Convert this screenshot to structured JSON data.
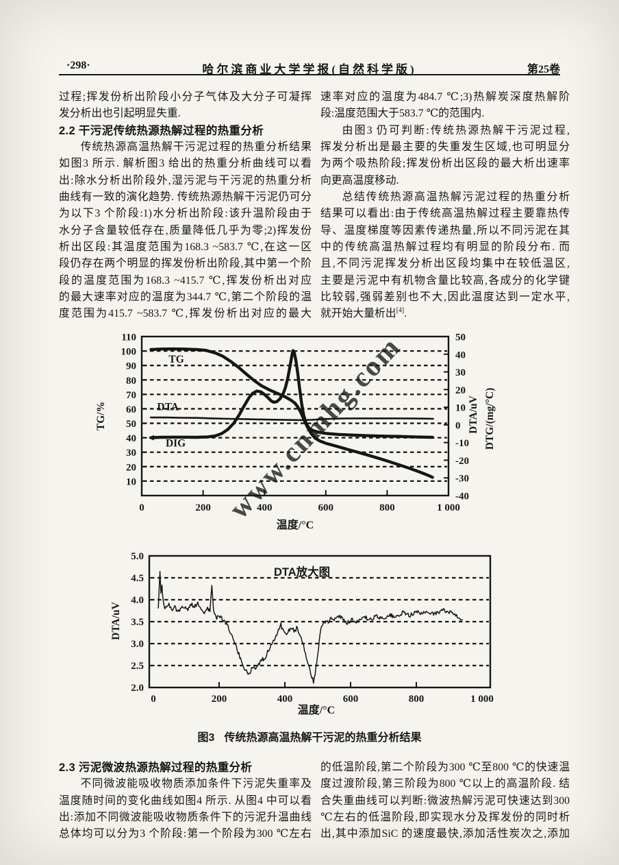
{
  "header": {
    "page_number": "·298·",
    "journal_title": "哈尔滨商业大学学报(自然科学版)",
    "volume": "第25卷"
  },
  "top_left_lines": [
    {
      "t": "过程;挥发份析出阶段小分子气体及大分子可凝挥"
    },
    {
      "t": "发分析出也引起明显失重.",
      "j": false
    },
    {
      "t": "2.2  干污泥传统热源热解过程的热重分析",
      "h": true
    },
    {
      "t": "传统热源高温热解干污泥过程的热重分析结果",
      "indent": true
    },
    {
      "t": "如图3 所示. 解析图3 给出的热重分析曲线可以看"
    },
    {
      "t": "出:除水分析出阶段外,湿污泥与干污泥的热重分析"
    },
    {
      "t": "曲线有一致的演化趋势. 传统热源热解干污泥仍可分"
    },
    {
      "t": "为以下3 个阶段:1)水分析出阶段:该升温阶段由于"
    },
    {
      "t": "水分子含量较低存在,质量降低几乎为零;2)挥发份"
    },
    {
      "t": "析出区段:其温度范围为168.3 ~583.7 ℃,在这一区"
    },
    {
      "t": "段仍存在两个明显的挥发份析出阶段,其中第一个阶"
    },
    {
      "t": "段的温度范围为168.3 ~415.7 ℃,挥发份析出对应"
    },
    {
      "t": "的最大速率对应的温度为344.7 ℃,第二个阶段的温"
    },
    {
      "t": "度范围为415.7 ~583.7 ℃,挥发份析出对应的最大"
    }
  ],
  "top_right_lines": [
    {
      "t": "速率对应的温度为484.7 ℃;3)热解炭深度热解阶"
    },
    {
      "t": "段:温度范围大于583.7 ℃的范围内.",
      "j": false
    },
    {
      "t": "由图3 仍可判断:传统热源热解干污泥过程,",
      "indent": true
    },
    {
      "t": "挥发分析出是最主要的失重发生区域,也可明显分"
    },
    {
      "t": "为两个吸热阶段;挥发份析出区段的最大析出速率"
    },
    {
      "t": "向更高温度移动.",
      "j": false
    },
    {
      "t": "总结传统热源高温热解污泥过程的热重分析",
      "indent": true
    },
    {
      "t": "结果可以看出:由于传统高温热解过程主要靠热传"
    },
    {
      "t": "导、温度梯度等因素传递热量,所以不同污泥在其"
    },
    {
      "t": "中的传统高温热解过程均有明显的阶段分布. 而"
    },
    {
      "t": "且,不同污泥挥发分析出区段均集中在较低温区,"
    },
    {
      "t": "主要是污泥中有机物含量比较高,各成分的化学键"
    },
    {
      "t": "比较弱,强弱差别也不大,因此温度达到一定水平,"
    },
    {
      "t": "就开始大量析出",
      "sup": "[4]",
      "tail": ".",
      "j": false
    }
  ],
  "figure_caption": {
    "num": "图3",
    "text": "传统热源高温热解干污泥的热重分析结果"
  },
  "bottom_left_lines": [
    {
      "t": "2.3  污泥微波热源热解过程的热重分析",
      "h": true
    },
    {
      "t": "不同微波能吸收物质添加条件下污泥失重率及",
      "indent": true
    },
    {
      "t": "温度随时间的变化曲线如图4 所示. 从图4 中可以看"
    },
    {
      "t": "出:添加不同微波能吸收物质条件下的污泥升温曲线"
    },
    {
      "t": "总体均可以分为3 个阶段:第一个阶段为300 ℃左右"
    }
  ],
  "bottom_right_lines": [
    {
      "t": "的低温阶段,第二个阶段为300 ℃至800 ℃的快速温"
    },
    {
      "t": "度过渡阶段,第三阶段为800 ℃以上的高温阶段. 结"
    },
    {
      "t": "合失重曲线可以判断:微波热解污泥可快速达到300"
    },
    {
      "t": "℃左右的低温阶段,即实现水分及挥发份的同时析"
    },
    {
      "t": "出,其中添加SiC 的速度最快,添加活性炭次之,添加"
    }
  ],
  "watermark": {
    "text": "www.cnmhg.com",
    "color": "#e0506e"
  },
  "colors": {
    "ink": "#181818",
    "paper": "#f6f4ee"
  },
  "chart_data": [
    {
      "type": "line",
      "xlabel": "温度/°C",
      "x_ticks": [
        0,
        200,
        400,
        600,
        800,
        1000
      ],
      "x_tick_labels": [
        "0",
        "200",
        "400",
        "600",
        "800",
        "1 000"
      ],
      "left_axis": {
        "title": "TG/%",
        "tick_values": [
          110,
          100,
          90,
          80,
          70,
          60,
          50,
          40,
          30,
          20,
          10
        ],
        "ticks": [
          "110",
          "100",
          "90",
          "80",
          "70",
          "60",
          "50",
          "40",
          "30",
          "20",
          "10"
        ],
        "range": [
          0,
          110
        ]
      },
      "right_axis": {
        "titles": [
          "DTA/uV",
          "DTG/(mg/°C)"
        ],
        "tick_values": [
          50,
          40,
          30,
          20,
          10,
          0,
          -10,
          -20,
          -30,
          -40
        ],
        "ticks": [
          "50",
          "40",
          "30",
          "20",
          "10",
          "0",
          "-10",
          "-20",
          "-30",
          "-40"
        ],
        "range": [
          -40,
          50
        ]
      },
      "grid": "horizontal-dashed",
      "legend_position": "inline-labels",
      "series": [
        {
          "name": "TG",
          "label_at": [
            88,
            92
          ],
          "points": [
            [
              30,
              101
            ],
            [
              60,
              101.3
            ],
            [
              100,
              101.4
            ],
            [
              140,
              101.3
            ],
            [
              180,
              101
            ],
            [
              210,
              100.4
            ],
            [
              240,
              98.6
            ],
            [
              265,
              96.3
            ],
            [
              290,
              92.8
            ],
            [
              315,
              88.8
            ],
            [
              340,
              84.2
            ],
            [
              365,
              79.8
            ],
            [
              390,
              76.0
            ],
            [
              415,
              73.2
            ],
            [
              440,
              70.9
            ],
            [
              465,
              68.6
            ],
            [
              485,
              66.2
            ],
            [
              500,
              63.8
            ],
            [
              510,
              60.9
            ],
            [
              520,
              56.8
            ],
            [
              530,
              52.0
            ],
            [
              540,
              47.5
            ],
            [
              552,
              43.0
            ],
            [
              565,
              39.8
            ],
            [
              580,
              37.8
            ],
            [
              600,
              36.2
            ],
            [
              630,
              34.4
            ],
            [
              665,
              32.3
            ],
            [
              700,
              30.2
            ],
            [
              735,
              28.1
            ],
            [
              770,
              25.9
            ],
            [
              805,
              23.6
            ],
            [
              840,
              21.2
            ],
            [
              875,
              18.7
            ],
            [
              905,
              16.4
            ],
            [
              930,
              14.3
            ],
            [
              948,
              12.6
            ]
          ]
        },
        {
          "name": "DTA",
          "label_at": [
            50,
            59
          ],
          "points": [
            [
              30,
              54.0
            ],
            [
              80,
              54.0
            ],
            [
              130,
              53.8
            ],
            [
              180,
              53.7
            ],
            [
              230,
              53.4
            ],
            [
              280,
              53.1
            ],
            [
              330,
              52.9
            ],
            [
              380,
              52.7
            ],
            [
              430,
              52.5
            ],
            [
              480,
              52.3
            ],
            [
              520,
              52.2
            ],
            [
              555,
              52.4
            ],
            [
              590,
              52.9
            ],
            [
              630,
              53.2
            ],
            [
              680,
              53.4
            ],
            [
              730,
              53.4
            ],
            [
              780,
              53.4
            ],
            [
              830,
              53.4
            ],
            [
              880,
              53.3
            ],
            [
              930,
              53.2
            ],
            [
              950,
              53.1
            ]
          ]
        },
        {
          "name": "DIG",
          "label_at": [
            78,
            34
          ],
          "points": [
            [
              30,
              40.0
            ],
            [
              60,
              40.3
            ],
            [
              100,
              40.4
            ],
            [
              140,
              40.4
            ],
            [
              180,
              40.3
            ],
            [
              215,
              40.6
            ],
            [
              240,
              41.3
            ],
            [
              260,
              42.8
            ],
            [
              280,
              45.6
            ],
            [
              300,
              50.0
            ],
            [
              318,
              56.0
            ],
            [
              335,
              62.5
            ],
            [
              350,
              67.8
            ],
            [
              362,
              70.8
            ],
            [
              375,
              72.3
            ],
            [
              388,
              71.8
            ],
            [
              400,
              70.0
            ],
            [
              412,
              67.6
            ],
            [
              422,
              65.5
            ],
            [
              430,
              64.6
            ],
            [
              440,
              64.9
            ],
            [
              450,
              66.8
            ],
            [
              460,
              70.0
            ],
            [
              468,
              74.5
            ],
            [
              476,
              81.0
            ],
            [
              483,
              89.0
            ],
            [
              489,
              96.5
            ],
            [
              493,
              100.3
            ],
            [
              497,
              99.0
            ],
            [
              503,
              93.0
            ],
            [
              509,
              84.0
            ],
            [
              515,
              73.5
            ],
            [
              521,
              64.0
            ],
            [
              528,
              55.5
            ],
            [
              536,
              49.8
            ],
            [
              546,
              46.6
            ],
            [
              558,
              45.0
            ],
            [
              575,
              43.9
            ],
            [
              600,
              43.0
            ],
            [
              640,
              42.3
            ],
            [
              690,
              41.8
            ],
            [
              740,
              41.4
            ],
            [
              790,
              41.1
            ],
            [
              840,
              40.9
            ],
            [
              890,
              40.6
            ],
            [
              948,
              40.3
            ]
          ]
        }
      ]
    },
    {
      "type": "line",
      "title": "DTA放大图",
      "xlabel": "温度/°C",
      "ylabel": "DTA/uV",
      "ylim": [
        2.0,
        5.0
      ],
      "y_tick_values": [
        5.0,
        4.5,
        4.0,
        3.5,
        3.0,
        2.5,
        2.0
      ],
      "y_tick_labels": [
        "5.0",
        "4.5",
        "4.0",
        "3.5",
        "3.0",
        "2.5",
        "2.0"
      ],
      "x_ticks": [
        0,
        200,
        400,
        600,
        800,
        1000
      ],
      "x_tick_labels": [
        "0",
        "200",
        "400",
        "600",
        "800",
        "1 000"
      ],
      "grid": "horizontal-dashed",
      "series": [
        {
          "name": "DTA",
          "noise": 0.1,
          "points": [
            [
              15,
              3.85
            ],
            [
              18,
              4.3
            ],
            [
              20,
              4.62
            ],
            [
              23,
              4.1
            ],
            [
              26,
              4.35
            ],
            [
              30,
              3.95
            ],
            [
              35,
              3.8
            ],
            [
              45,
              3.9
            ],
            [
              55,
              3.78
            ],
            [
              65,
              3.85
            ],
            [
              75,
              3.72
            ],
            [
              85,
              3.8
            ],
            [
              95,
              3.85
            ],
            [
              105,
              3.78
            ],
            [
              115,
              3.9
            ],
            [
              125,
              3.82
            ],
            [
              135,
              3.95
            ],
            [
              145,
              3.8
            ],
            [
              155,
              3.72
            ],
            [
              165,
              3.8
            ],
            [
              172,
              3.72
            ],
            [
              178,
              4.35
            ],
            [
              183,
              3.75
            ],
            [
              190,
              3.6
            ],
            [
              200,
              3.62
            ],
            [
              210,
              3.55
            ],
            [
              220,
              3.48
            ],
            [
              232,
              3.3
            ],
            [
              245,
              3.05
            ],
            [
              258,
              2.8
            ],
            [
              268,
              2.6
            ],
            [
              278,
              2.42
            ],
            [
              288,
              2.3
            ],
            [
              296,
              2.38
            ],
            [
              305,
              2.5
            ],
            [
              312,
              2.42
            ],
            [
              320,
              2.55
            ],
            [
              330,
              2.62
            ],
            [
              340,
              2.68
            ],
            [
              350,
              2.85
            ],
            [
              360,
              3.0
            ],
            [
              370,
              3.15
            ],
            [
              380,
              3.3
            ],
            [
              388,
              3.42
            ],
            [
              395,
              3.28
            ],
            [
              403,
              3.2
            ],
            [
              412,
              3.3
            ],
            [
              420,
              3.38
            ],
            [
              428,
              3.28
            ],
            [
              436,
              3.35
            ],
            [
              444,
              3.2
            ],
            [
              452,
              3.05
            ],
            [
              460,
              2.85
            ],
            [
              468,
              2.62
            ],
            [
              476,
              2.4
            ],
            [
              482,
              2.25
            ],
            [
              487,
              2.13
            ],
            [
              492,
              2.3
            ],
            [
              497,
              2.55
            ],
            [
              502,
              2.9
            ],
            [
              507,
              3.2
            ],
            [
              512,
              3.42
            ],
            [
              520,
              3.5
            ],
            [
              530,
              3.48
            ],
            [
              540,
              3.6
            ],
            [
              550,
              3.55
            ],
            [
              562,
              3.65
            ],
            [
              575,
              3.58
            ],
            [
              590,
              3.48
            ],
            [
              605,
              3.55
            ],
            [
              620,
              3.5
            ],
            [
              640,
              3.6
            ],
            [
              660,
              3.55
            ],
            [
              680,
              3.62
            ],
            [
              700,
              3.58
            ],
            [
              720,
              3.65
            ],
            [
              740,
              3.6
            ],
            [
              760,
              3.7
            ],
            [
              780,
              3.65
            ],
            [
              800,
              3.72
            ],
            [
              820,
              3.68
            ],
            [
              840,
              3.72
            ],
            [
              860,
              3.68
            ],
            [
              880,
              3.78
            ],
            [
              895,
              3.7
            ],
            [
              910,
              3.72
            ],
            [
              925,
              3.6
            ],
            [
              940,
              3.55
            ]
          ]
        }
      ]
    }
  ]
}
